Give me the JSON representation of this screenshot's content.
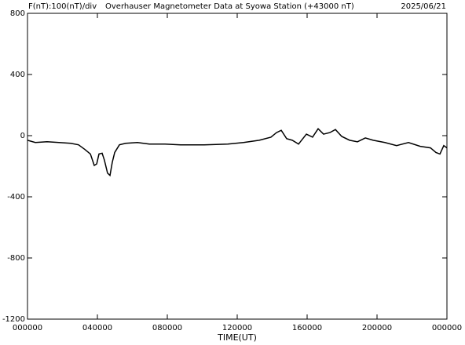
{
  "chart_data": {
    "type": "line",
    "title": "Overhauser Magnetometer Data at Syowa Station (+43000 nT)",
    "scale_note": "F(nT):100(nT)/div",
    "date": "2025/06/21",
    "x_label": "TIME(UT)",
    "xlim": [
      0,
      24
    ],
    "xticks": [
      {
        "value": 0,
        "label": "000000"
      },
      {
        "value": 4,
        "label": "040000"
      },
      {
        "value": 8,
        "label": "080000"
      },
      {
        "value": 12,
        "label": "120000"
      },
      {
        "value": 16,
        "label": "160000"
      },
      {
        "value": 20,
        "label": "200000"
      },
      {
        "value": 24,
        "label": "000000"
      }
    ],
    "ylim": [
      -1200,
      800
    ],
    "yticks": [
      800,
      400,
      0,
      -400,
      -800,
      -1200
    ],
    "x": [
      0,
      0.45,
      1.12,
      1.8,
      2.47,
      2.92,
      3.28,
      3.6,
      3.82,
      3.96,
      4.09,
      4.27,
      4.4,
      4.58,
      4.72,
      4.85,
      4.99,
      5.26,
      5.62,
      6.29,
      6.97,
      7.87,
      8.76,
      10.11,
      11.46,
      12.36,
      13.26,
      13.93,
      14.25,
      14.52,
      14.83,
      15.15,
      15.51,
      15.96,
      16.31,
      16.63,
      16.94,
      17.3,
      17.62,
      17.98,
      18.43,
      18.88,
      19.33,
      19.78,
      20.45,
      21.12,
      21.8,
      22.47,
      23.06,
      23.37,
      23.6,
      23.82,
      24
    ],
    "series": [
      {
        "color": "#000000",
        "values": [
          -30,
          -45,
          -40,
          -45,
          -50,
          -60,
          -90,
          -120,
          -195,
          -185,
          -120,
          -115,
          -160,
          -245,
          -260,
          -175,
          -110,
          -60,
          -50,
          -45,
          -55,
          -55,
          -60,
          -60,
          -55,
          -45,
          -30,
          -10,
          20,
          35,
          -20,
          -30,
          -55,
          10,
          -10,
          45,
          10,
          20,
          40,
          -5,
          -30,
          -40,
          -15,
          -30,
          -45,
          -65,
          -45,
          -70,
          -80,
          -110,
          -120,
          -65,
          -80
        ]
      }
    ]
  }
}
